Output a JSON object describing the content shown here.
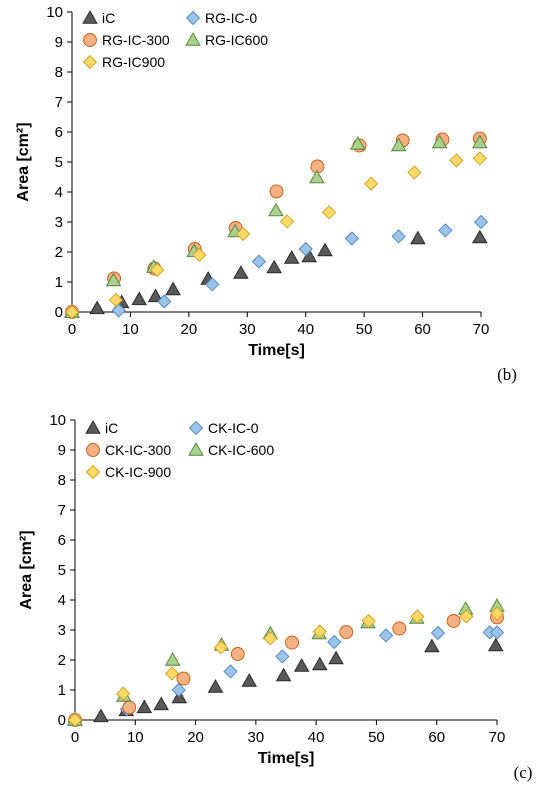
{
  "chart_data": [
    {
      "type": "scatter",
      "panel_label": "(b)",
      "xlabel": "Time[s]",
      "ylabel": "Area [cm²]",
      "xlim": [
        0,
        70
      ],
      "ylim": [
        0,
        10
      ],
      "xticks": [
        "0",
        "10",
        "20",
        "30",
        "40",
        "50",
        "60",
        "70"
      ],
      "yticks": [
        "0",
        "1",
        "2",
        "3",
        "4",
        "5",
        "6",
        "7",
        "8",
        "9",
        "10"
      ],
      "grid": false,
      "legend_position": "top-left",
      "series": [
        {
          "name": "iC",
          "marker": "triangle",
          "color": "#595959",
          "x": [
            0,
            4.3,
            8.5,
            11.5,
            14.3,
            17.3,
            23.3,
            28.9,
            34.6,
            37.6,
            40.6,
            43.3,
            59.2,
            69.8
          ],
          "y": [
            0,
            0.12,
            0.32,
            0.42,
            0.52,
            0.75,
            1.1,
            1.3,
            1.48,
            1.8,
            1.85,
            2.05,
            2.45,
            2.48
          ]
        },
        {
          "name": "RG-IC-0",
          "marker": "diamond",
          "color": "#9DC3E6",
          "x": [
            0,
            8,
            15.8,
            24,
            32,
            40,
            47.9,
            55.9,
            63.9,
            70
          ],
          "y": [
            0,
            0.05,
            0.35,
            0.92,
            1.68,
            2.1,
            2.45,
            2.52,
            2.72,
            3.0
          ]
        },
        {
          "name": "RG-IC-300",
          "marker": "circle",
          "color": "#F4B183",
          "x": [
            0,
            7.2,
            14.1,
            21,
            28,
            35,
            42,
            49.2,
            56.6,
            63.4,
            69.8
          ],
          "y": [
            0,
            1.12,
            1.45,
            2.1,
            2.8,
            4.02,
            4.85,
            5.55,
            5.72,
            5.75,
            5.78
          ]
        },
        {
          "name": "RG-IC600",
          "marker": "triangle",
          "color": "#A9D18E",
          "x": [
            0,
            7.1,
            14,
            20.9,
            27.9,
            34.9,
            41.9,
            48.9,
            55.9,
            62.9,
            69.8
          ],
          "y": [
            0,
            1.05,
            1.5,
            2.02,
            2.68,
            3.38,
            4.48,
            5.6,
            5.55,
            5.65,
            5.65
          ]
        },
        {
          "name": "RG-IC900",
          "marker": "diamond",
          "color": "#FFD966",
          "x": [
            0,
            7.5,
            14.6,
            21.8,
            29.3,
            36.8,
            44,
            51.2,
            58.6,
            65.8,
            69.8
          ],
          "y": [
            0,
            0.4,
            1.4,
            1.9,
            2.6,
            3.02,
            3.32,
            4.28,
            4.65,
            5.05,
            5.12
          ]
        }
      ]
    },
    {
      "type": "scatter",
      "panel_label": "(c)",
      "xlabel": "Time[s]",
      "ylabel": "Area [cm²]",
      "xlim": [
        0,
        70
      ],
      "ylim": [
        0,
        10
      ],
      "xticks": [
        "0",
        "10",
        "20",
        "30",
        "40",
        "50",
        "60",
        "70"
      ],
      "yticks": [
        "0",
        "1",
        "2",
        "3",
        "4",
        "5",
        "6",
        "7",
        "8",
        "9",
        "10"
      ],
      "grid": false,
      "legend_position": "top-left",
      "series": [
        {
          "name": "iC",
          "marker": "triangle",
          "color": "#595959",
          "x": [
            0,
            4.3,
            8.5,
            11.5,
            14.3,
            17.3,
            23.3,
            28.9,
            34.6,
            37.6,
            40.6,
            43.3,
            59.2,
            69.8
          ],
          "y": [
            0,
            0.12,
            0.32,
            0.42,
            0.52,
            0.75,
            1.1,
            1.3,
            1.48,
            1.8,
            1.85,
            2.05,
            2.45,
            2.48
          ]
        },
        {
          "name": "CK-IC-0",
          "marker": "diamond",
          "color": "#9DC3E6",
          "x": [
            0,
            8.6,
            17.2,
            25.8,
            34.4,
            43,
            51.6,
            60.2,
            68.8,
            70
          ],
          "y": [
            0,
            0.35,
            1.0,
            1.62,
            2.12,
            2.6,
            2.82,
            2.9,
            2.92,
            2.92
          ]
        },
        {
          "name": "CK-IC-300",
          "marker": "circle",
          "color": "#F4B183",
          "x": [
            0,
            9,
            18,
            27,
            36,
            45,
            53.8,
            62.8,
            70
          ],
          "y": [
            0,
            0.42,
            1.38,
            2.2,
            2.58,
            2.93,
            3.05,
            3.3,
            3.42
          ]
        },
        {
          "name": "CK-IC-600",
          "marker": "triangle",
          "color": "#A9D18E",
          "x": [
            0,
            8.1,
            16.2,
            24.3,
            32.4,
            40.5,
            48.6,
            56.7,
            64.8,
            70
          ],
          "y": [
            0,
            0.8,
            2.0,
            2.5,
            2.88,
            2.88,
            3.25,
            3.4,
            3.7,
            3.8
          ]
        },
        {
          "name": "CK-IC-900",
          "marker": "diamond",
          "color": "#FFD966",
          "x": [
            0,
            8,
            16.1,
            24.2,
            32.4,
            40.6,
            48.7,
            56.8,
            64.9,
            70
          ],
          "y": [
            0,
            0.88,
            1.55,
            2.42,
            2.72,
            2.95,
            3.3,
            3.45,
            3.45,
            3.55
          ]
        }
      ]
    }
  ]
}
